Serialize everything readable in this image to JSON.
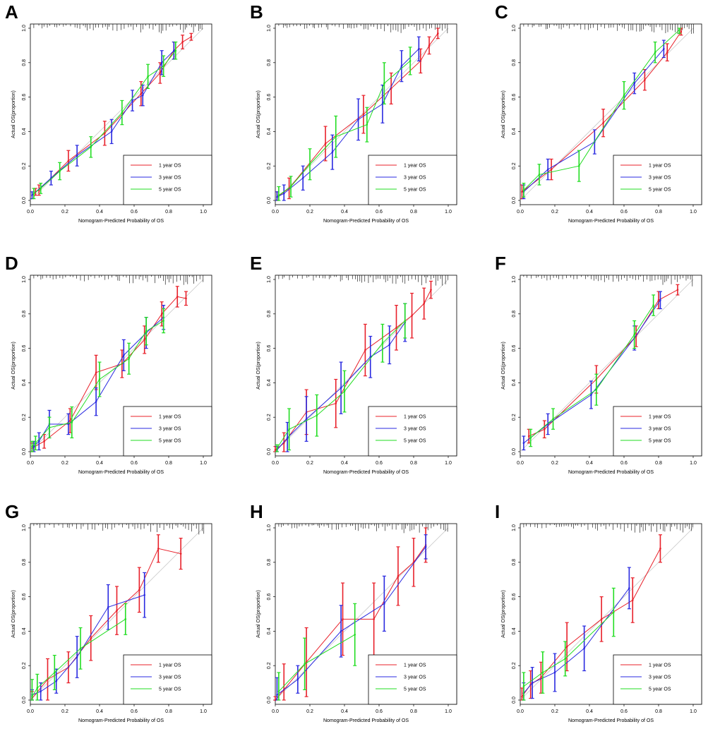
{
  "figure": {
    "series_colors": {
      "1 year OS": "#e8202a",
      "3 year OS": "#2a2ae0",
      "5 year OS": "#22dd22"
    },
    "ideal_line_color": "#c8c8c8"
  },
  "chart_data": [
    {
      "panel": "A",
      "type": "line",
      "xlabel": "Nomogram-Predicted Probability of OS",
      "ylabel": "Actual OS(proportion)",
      "xlim": [
        0,
        1
      ],
      "ylim": [
        0,
        1
      ],
      "xticks": [
        "0.0",
        "0.2",
        "0.4",
        "0.6",
        "0.8",
        "1.0"
      ],
      "yticks": [
        "0.0",
        "0.2",
        "0.4",
        "0.6",
        "0.8",
        "1.0"
      ],
      "legend": [
        "1 year OS",
        "3 year OS",
        "5 year OS"
      ],
      "series": [
        {
          "name": "1 year OS",
          "x": [
            0.03,
            0.05,
            0.22,
            0.43,
            0.64,
            0.75,
            0.83,
            0.88,
            0.93
          ],
          "y": [
            0.05,
            0.06,
            0.23,
            0.39,
            0.62,
            0.74,
            0.87,
            0.92,
            0.95
          ],
          "err": [
            0.02,
            0.03,
            0.06,
            0.07,
            0.07,
            0.06,
            0.05,
            0.04,
            0.02
          ]
        },
        {
          "name": "3 year OS",
          "x": [
            0.01,
            0.12,
            0.27,
            0.47,
            0.59,
            0.65,
            0.76,
            0.83
          ],
          "y": [
            0.03,
            0.13,
            0.26,
            0.4,
            0.58,
            0.61,
            0.8,
            0.87
          ],
          "err": [
            0.02,
            0.04,
            0.06,
            0.07,
            0.06,
            0.06,
            0.07,
            0.05
          ]
        },
        {
          "name": "5 year OS",
          "x": [
            0.02,
            0.06,
            0.17,
            0.35,
            0.53,
            0.68,
            0.77,
            0.84
          ],
          "y": [
            0.04,
            0.07,
            0.17,
            0.31,
            0.51,
            0.72,
            0.78,
            0.87
          ],
          "err": [
            0.03,
            0.03,
            0.05,
            0.06,
            0.07,
            0.07,
            0.06,
            0.05
          ]
        }
      ]
    },
    {
      "panel": "B",
      "type": "line",
      "xlabel": "Nomogram-Predicted Probability of OS",
      "ylabel": "Actual OS(proportion)",
      "xlim": [
        0,
        1
      ],
      "ylim": [
        0,
        1
      ],
      "xticks": [
        "0.0",
        "0.2",
        "0.4",
        "0.6",
        "0.8",
        "1.0"
      ],
      "yticks": [
        "0.0",
        "0.2",
        "0.4",
        "0.6",
        "0.8",
        "1.0"
      ],
      "legend": [
        "1 year OS",
        "3 year OS",
        "5 year OS"
      ],
      "series": [
        {
          "name": "1 year OS",
          "x": [
            0.01,
            0.08,
            0.29,
            0.51,
            0.67,
            0.84,
            0.89,
            0.94
          ],
          "y": [
            0.02,
            0.07,
            0.33,
            0.5,
            0.65,
            0.81,
            0.9,
            0.97
          ],
          "err": [
            0.03,
            0.06,
            0.1,
            0.11,
            0.09,
            0.07,
            0.05,
            0.03
          ]
        },
        {
          "name": "3 year OS",
          "x": [
            0.01,
            0.05,
            0.16,
            0.33,
            0.48,
            0.62,
            0.73,
            0.83
          ],
          "y": [
            0.02,
            0.04,
            0.13,
            0.28,
            0.47,
            0.56,
            0.78,
            0.88
          ],
          "err": [
            0.03,
            0.05,
            0.07,
            0.1,
            0.12,
            0.11,
            0.09,
            0.07
          ]
        },
        {
          "name": "5 year OS",
          "x": [
            0.02,
            0.09,
            0.2,
            0.35,
            0.53,
            0.63,
            0.78
          ],
          "y": [
            0.03,
            0.08,
            0.21,
            0.37,
            0.44,
            0.68,
            0.81
          ],
          "err": [
            0.05,
            0.06,
            0.09,
            0.12,
            0.1,
            0.12,
            0.08
          ]
        }
      ]
    },
    {
      "panel": "C",
      "type": "line",
      "xlabel": "Nomogram-Predicted Probability of OS",
      "ylabel": "Actual OS(proportion)",
      "xlim": [
        0,
        1
      ],
      "ylim": [
        0,
        1
      ],
      "xticks": [
        "0.0",
        "0.2",
        "0.4",
        "0.6",
        "0.8",
        "1.0"
      ],
      "yticks": [
        "0.0",
        "0.2",
        "0.4",
        "0.6",
        "0.8",
        "1.0"
      ],
      "legend": [
        "1 year OS",
        "3 year OS",
        "5 year OS"
      ],
      "series": [
        {
          "name": "1 year OS",
          "x": [
            0.01,
            0.18,
            0.48,
            0.72,
            0.85,
            0.93
          ],
          "y": [
            0.05,
            0.18,
            0.45,
            0.7,
            0.86,
            0.98
          ],
          "err": [
            0.04,
            0.06,
            0.08,
            0.06,
            0.05,
            0.02
          ]
        },
        {
          "name": "3 year OS",
          "x": [
            0.02,
            0.16,
            0.43,
            0.66,
            0.83
          ],
          "y": [
            0.05,
            0.18,
            0.34,
            0.68,
            0.88
          ],
          "err": [
            0.04,
            0.06,
            0.07,
            0.06,
            0.05
          ]
        },
        {
          "name": "5 year OS",
          "x": [
            0.02,
            0.11,
            0.34,
            0.6,
            0.78,
            0.92
          ],
          "y": [
            0.06,
            0.15,
            0.2,
            0.61,
            0.86,
            0.99
          ],
          "err": [
            0.04,
            0.06,
            0.09,
            0.08,
            0.06,
            0.02
          ]
        }
      ]
    },
    {
      "panel": "D",
      "type": "line",
      "xlabel": "Nomogram-Predicted Probability of OS",
      "ylabel": "Actual OS(proportion)",
      "xlim": [
        0,
        1
      ],
      "ylim": [
        0,
        1
      ],
      "xticks": [
        "0.0",
        "0.2",
        "0.4",
        "0.6",
        "0.8",
        "1.0"
      ],
      "yticks": [
        "0.0",
        "0.2",
        "0.4",
        "0.6",
        "0.8",
        "1.0"
      ],
      "legend": [
        "1 year OS",
        "3 year OS",
        "5 year OS"
      ],
      "series": [
        {
          "name": "1 year OS",
          "x": [
            0.01,
            0.08,
            0.23,
            0.38,
            0.53,
            0.66,
            0.76,
            0.85,
            0.9
          ],
          "y": [
            0.02,
            0.06,
            0.18,
            0.46,
            0.51,
            0.65,
            0.8,
            0.9,
            0.89
          ],
          "err": [
            0.03,
            0.04,
            0.07,
            0.1,
            0.08,
            0.08,
            0.07,
            0.06,
            0.04
          ]
        },
        {
          "name": "3 year OS",
          "x": [
            0.02,
            0.05,
            0.11,
            0.22,
            0.38,
            0.54,
            0.67,
            0.77
          ],
          "y": [
            0.03,
            0.06,
            0.16,
            0.16,
            0.29,
            0.56,
            0.69,
            0.78
          ],
          "err": [
            0.03,
            0.05,
            0.08,
            0.06,
            0.08,
            0.09,
            0.09,
            0.07
          ]
        },
        {
          "name": "5 year OS",
          "x": [
            0.01,
            0.03,
            0.11,
            0.24,
            0.4,
            0.57,
            0.67,
            0.77
          ],
          "y": [
            0.03,
            0.05,
            0.14,
            0.17,
            0.42,
            0.54,
            0.7,
            0.76
          ],
          "err": [
            0.03,
            0.04,
            0.06,
            0.09,
            0.1,
            0.09,
            0.08,
            0.07
          ]
        }
      ]
    },
    {
      "panel": "E",
      "type": "line",
      "xlabel": "Nomogram-Predicted Probability of OS",
      "ylabel": "Actual OS(proportion)",
      "xlim": [
        0,
        1
      ],
      "ylim": [
        0,
        1
      ],
      "xticks": [
        "0.0",
        "0.2",
        "0.4",
        "0.6",
        "0.8",
        "1.0"
      ],
      "yticks": [
        "0.0",
        "0.2",
        "0.4",
        "0.6",
        "0.8",
        "1.0"
      ],
      "legend": [
        "1 year OS",
        "3 year OS",
        "5 year OS"
      ],
      "series": [
        {
          "name": "1 year OS",
          "x": [
            0.0,
            0.05,
            0.18,
            0.35,
            0.52,
            0.7,
            0.79,
            0.86,
            0.9
          ],
          "y": [
            0.01,
            0.05,
            0.23,
            0.28,
            0.59,
            0.72,
            0.79,
            0.86,
            0.94
          ],
          "err": [
            0.02,
            0.06,
            0.13,
            0.14,
            0.15,
            0.13,
            0.13,
            0.09,
            0.05
          ]
        },
        {
          "name": "3 year OS",
          "x": [
            0.01,
            0.07,
            0.18,
            0.38,
            0.55,
            0.66,
            0.75
          ],
          "y": [
            0.01,
            0.08,
            0.19,
            0.37,
            0.55,
            0.62,
            0.75
          ],
          "err": [
            0.02,
            0.09,
            0.13,
            0.15,
            0.12,
            0.11,
            0.11
          ]
        },
        {
          "name": "5 year OS",
          "x": [
            0.01,
            0.08,
            0.24,
            0.4,
            0.62,
            0.75
          ],
          "y": [
            0.02,
            0.13,
            0.21,
            0.35,
            0.63,
            0.76
          ],
          "err": [
            0.02,
            0.12,
            0.12,
            0.12,
            0.11,
            0.1
          ]
        }
      ]
    },
    {
      "panel": "F",
      "type": "line",
      "xlabel": "Nomogram-Predicted Probability of OS",
      "ylabel": "Actual OS(proportion)",
      "xlim": [
        0,
        1
      ],
      "ylim": [
        0,
        1
      ],
      "xticks": [
        "0.0",
        "0.2",
        "0.4",
        "0.6",
        "0.8",
        "1.0"
      ],
      "yticks": [
        "0.0",
        "0.2",
        "0.4",
        "0.6",
        "0.8",
        "1.0"
      ],
      "legend": [
        "1 year OS",
        "3 year OS",
        "5 year OS"
      ],
      "series": [
        {
          "name": "1 year OS",
          "x": [
            0.05,
            0.14,
            0.44,
            0.67,
            0.8,
            0.91
          ],
          "y": [
            0.09,
            0.13,
            0.42,
            0.67,
            0.88,
            0.94
          ],
          "err": [
            0.04,
            0.05,
            0.08,
            0.06,
            0.05,
            0.03
          ]
        },
        {
          "name": "3 year OS",
          "x": [
            0.02,
            0.16,
            0.41,
            0.66,
            0.81
          ],
          "y": [
            0.05,
            0.16,
            0.33,
            0.66,
            0.88
          ],
          "err": [
            0.04,
            0.06,
            0.08,
            0.07,
            0.05
          ]
        },
        {
          "name": "5 year OS",
          "x": [
            0.06,
            0.19,
            0.44,
            0.66,
            0.77
          ],
          "y": [
            0.08,
            0.19,
            0.36,
            0.68,
            0.85
          ],
          "err": [
            0.05,
            0.06,
            0.09,
            0.08,
            0.06
          ]
        }
      ]
    },
    {
      "panel": "G",
      "type": "line",
      "xlabel": "Nomogram-Predicted Probability of OS",
      "ylabel": "Actual OS(proportion)",
      "xlim": [
        0,
        1
      ],
      "ylim": [
        0,
        1
      ],
      "xticks": [
        "0.0",
        "0.2",
        "0.4",
        "0.6",
        "0.8",
        "1.0"
      ],
      "yticks": [
        "0.0",
        "0.2",
        "0.4",
        "0.6",
        "0.8",
        "1.0"
      ],
      "legend": [
        "1 year OS",
        "3 year OS",
        "5 year OS"
      ],
      "series": [
        {
          "name": "1 year OS",
          "x": [
            0.01,
            0.1,
            0.22,
            0.35,
            0.5,
            0.63,
            0.74,
            0.87
          ],
          "y": [
            0.01,
            0.12,
            0.19,
            0.36,
            0.52,
            0.64,
            0.88,
            0.85
          ],
          "err": [
            0.04,
            0.12,
            0.09,
            0.13,
            0.14,
            0.13,
            0.08,
            0.09
          ]
        },
        {
          "name": "3 year OS",
          "x": [
            0.01,
            0.06,
            0.15,
            0.27,
            0.45,
            0.66
          ],
          "y": [
            0.03,
            0.05,
            0.11,
            0.25,
            0.54,
            0.61
          ],
          "err": [
            0.03,
            0.05,
            0.07,
            0.12,
            0.13,
            0.13
          ]
        },
        {
          "name": "5 year OS",
          "x": [
            0.01,
            0.04,
            0.14,
            0.29,
            0.55
          ],
          "y": [
            0.02,
            0.07,
            0.16,
            0.3,
            0.47
          ],
          "err": [
            0.1,
            0.08,
            0.1,
            0.12,
            0.09
          ]
        }
      ]
    },
    {
      "panel": "H",
      "type": "line",
      "xlabel": "Nomogram-Predicted Probability of OS",
      "ylabel": "Actual OS(proportion)",
      "xlim": [
        0,
        1
      ],
      "ylim": [
        0,
        1
      ],
      "xticks": [
        "0.0",
        "0.2",
        "0.4",
        "0.6",
        "0.8",
        "1.0"
      ],
      "yticks": [
        "0.0",
        "0.2",
        "0.4",
        "0.6",
        "0.8",
        "1.0"
      ],
      "legend": [
        "1 year OS",
        "3 year OS",
        "5 year OS"
      ],
      "series": [
        {
          "name": "1 year OS",
          "x": [
            0.0,
            0.05,
            0.18,
            0.39,
            0.57,
            0.71,
            0.8,
            0.87
          ],
          "y": [
            0.0,
            0.06,
            0.22,
            0.47,
            0.47,
            0.72,
            0.8,
            0.9
          ],
          "err": [
            0.02,
            0.15,
            0.2,
            0.21,
            0.21,
            0.17,
            0.14,
            0.1
          ]
        },
        {
          "name": "3 year OS",
          "x": [
            0.01,
            0.13,
            0.38,
            0.63,
            0.87
          ],
          "y": [
            0.03,
            0.12,
            0.4,
            0.56,
            0.89
          ],
          "err": [
            0.1,
            0.08,
            0.15,
            0.16,
            0.07
          ]
        },
        {
          "name": "5 year OS",
          "x": [
            0.02,
            0.17,
            0.46
          ],
          "y": [
            0.05,
            0.21,
            0.38
          ],
          "err": [
            0.11,
            0.15,
            0.18
          ]
        }
      ]
    },
    {
      "panel": "I",
      "type": "line",
      "xlabel": "Nomogram-Predicted Probability of OS",
      "ylabel": "Actual OS(proportion)",
      "xlim": [
        0,
        1
      ],
      "ylim": [
        0,
        1
      ],
      "xticks": [
        "0.0",
        "0.2",
        "0.4",
        "0.6",
        "0.8",
        "1.0"
      ],
      "yticks": [
        "0.0",
        "0.2",
        "0.4",
        "0.6",
        "0.8",
        "1.0"
      ],
      "legend": [
        "1 year OS",
        "3 year OS",
        "5 year OS"
      ],
      "series": [
        {
          "name": "1 year OS",
          "x": [
            0.01,
            0.06,
            0.12,
            0.27,
            0.47,
            0.65,
            0.81
          ],
          "y": [
            0.02,
            0.09,
            0.13,
            0.31,
            0.47,
            0.58,
            0.88
          ],
          "err": [
            0.05,
            0.08,
            0.09,
            0.14,
            0.13,
            0.13,
            0.08
          ]
        },
        {
          "name": "3 year OS",
          "x": [
            0.02,
            0.07,
            0.2,
            0.37,
            0.63
          ],
          "y": [
            0.04,
            0.1,
            0.16,
            0.3,
            0.65
          ],
          "err": [
            0.06,
            0.09,
            0.11,
            0.13,
            0.12
          ]
        },
        {
          "name": "5 year OS",
          "x": [
            0.02,
            0.13,
            0.26,
            0.54
          ],
          "y": [
            0.08,
            0.16,
            0.24,
            0.51
          ],
          "err": [
            0.08,
            0.12,
            0.1,
            0.14
          ]
        }
      ]
    }
  ]
}
